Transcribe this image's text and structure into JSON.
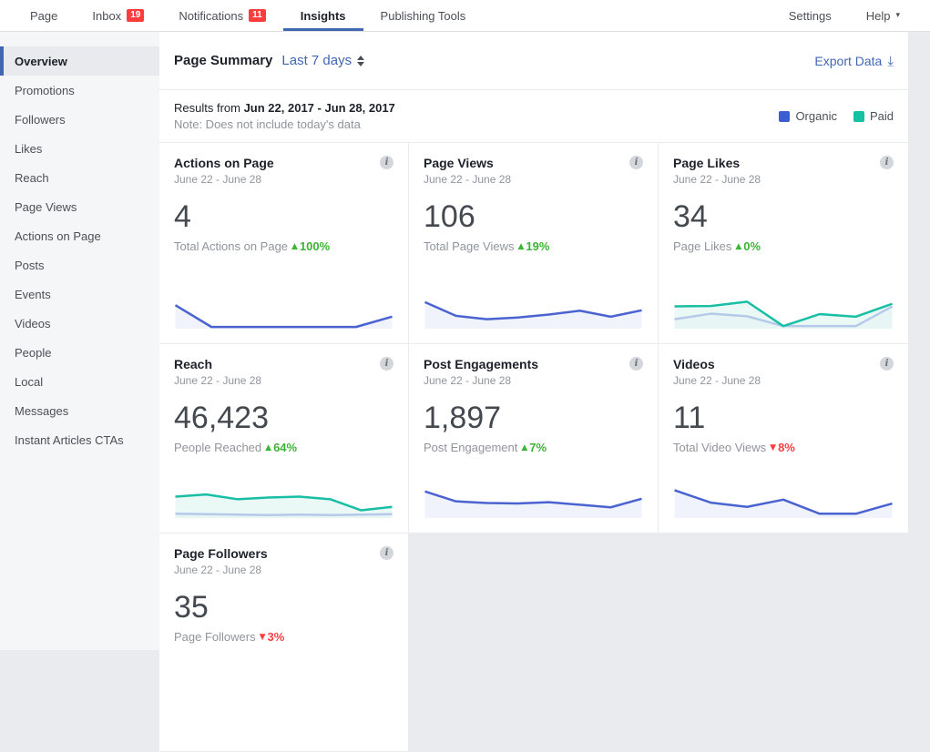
{
  "nav": {
    "items": [
      {
        "label": "Page",
        "badge": null,
        "active": false
      },
      {
        "label": "Inbox",
        "badge": "19",
        "active": false
      },
      {
        "label": "Notifications",
        "badge": "11",
        "active": false
      },
      {
        "label": "Insights",
        "badge": null,
        "active": true
      },
      {
        "label": "Publishing Tools",
        "badge": null,
        "active": false
      }
    ],
    "settings": "Settings",
    "help": "Help"
  },
  "sidebar": {
    "items": [
      "Overview",
      "Promotions",
      "Followers",
      "Likes",
      "Reach",
      "Page Views",
      "Actions on Page",
      "Posts",
      "Events",
      "Videos",
      "People",
      "Local",
      "Messages",
      "Instant Articles CTAs"
    ],
    "active": "Overview"
  },
  "summary": {
    "title": "Page Summary",
    "range": "Last 7 days",
    "export": "Export Data"
  },
  "results": {
    "prefix": "Results from ",
    "range": "Jun 22, 2017 - Jun 28, 2017",
    "note": "Note: Does not include today's data"
  },
  "legend": {
    "organic": "Organic",
    "paid": "Paid"
  },
  "colors": {
    "accent": "#4267b2",
    "organic": "#4a63d0",
    "paid": "#19bfa5",
    "up": "#3bb534",
    "down": "#fa3e3e"
  },
  "icons": {
    "delta_up": "▲",
    "delta_down": "▼",
    "help_caret": "▾",
    "download": "⤓",
    "info": "i"
  },
  "cards": [
    {
      "title": "Actions on Page",
      "period": "June 22 - June 28",
      "value": "4",
      "label": "Total Actions on Page",
      "delta": "100%",
      "direction": "up",
      "chart": {
        "type": "line",
        "series": [
          {
            "name": "Organic",
            "color": "#4a63d0",
            "fill": "#e9eefb",
            "values": [
              55,
              4,
              4,
              4,
              4,
              4,
              28
            ]
          }
        ]
      }
    },
    {
      "title": "Page Views",
      "period": "June 22 - June 28",
      "value": "106",
      "label": "Total Page Views",
      "delta": "19%",
      "direction": "up",
      "chart": {
        "type": "line",
        "series": [
          {
            "name": "Organic",
            "color": "#4a63d0",
            "fill": "#e9eefb",
            "values": [
              62,
              30,
              22,
              26,
              33,
              42,
              28,
              43
            ]
          }
        ]
      }
    },
    {
      "title": "Page Likes",
      "period": "June 22 - June 28",
      "value": "34",
      "label": "Page Likes",
      "delta": "0%",
      "direction": "up",
      "chart": {
        "type": "line",
        "series": [
          {
            "name": "Organic",
            "color": "#4a63d0",
            "fill": "#e9eefb",
            "values": [
              22,
              35,
              29,
              6,
              6,
              6,
              52
            ]
          },
          {
            "name": "Paid",
            "color": "#19bfa5",
            "fill": "#e2f7f2",
            "values": [
              52,
              53,
              63,
              6,
              34,
              28,
              58
            ]
          }
        ]
      }
    },
    {
      "title": "Reach",
      "period": "June 22 - June 28",
      "value": "46,423",
      "label": "People Reached",
      "delta": "64%",
      "direction": "up",
      "chart": {
        "type": "line",
        "series": [
          {
            "name": "Organic",
            "color": "#4a63d0",
            "fill": "#e9eefb",
            "values": [
              10,
              9,
              8,
              7,
              8,
              7,
              8,
              9
            ]
          },
          {
            "name": "Paid",
            "color": "#19bfa5",
            "fill": "#e2f7f2",
            "values": [
              50,
              55,
              44,
              48,
              50,
              44,
              18,
              26
            ]
          }
        ]
      }
    },
    {
      "title": "Post Engagements",
      "period": "June 22 - June 28",
      "value": "1,897",
      "label": "Post Engagement",
      "delta": "7%",
      "direction": "up",
      "chart": {
        "type": "line",
        "series": [
          {
            "name": "Organic",
            "color": "#4a63d0",
            "fill": "#e9eefb",
            "values": [
              62,
              39,
              35,
              34,
              37,
              31,
              25,
              45
            ]
          }
        ]
      }
    },
    {
      "title": "Videos",
      "period": "June 22 - June 28",
      "value": "11",
      "label": "Total Video Views",
      "delta": "8%",
      "direction": "down",
      "chart": {
        "type": "line",
        "series": [
          {
            "name": "Organic",
            "color": "#4a63d0",
            "fill": "#e9eefb",
            "values": [
              65,
              36,
              26,
              43,
              10,
              10,
              34
            ]
          }
        ]
      }
    },
    {
      "title": "Page Followers",
      "period": "June 22 - June 28",
      "value": "35",
      "label": "Page Followers",
      "delta": "3%",
      "direction": "down",
      "chart": null
    }
  ]
}
